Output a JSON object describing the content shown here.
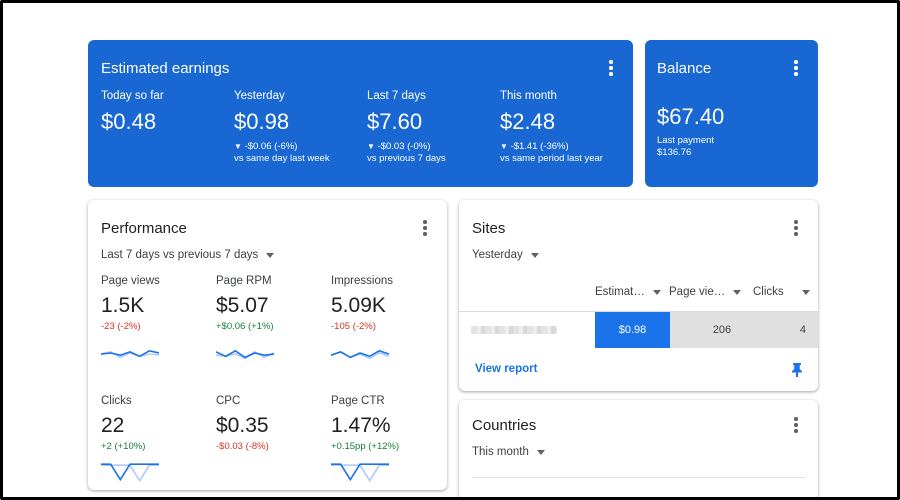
{
  "colors": {
    "accent_blue": "#1967d2",
    "negative": "#d93025",
    "positive": "#188038",
    "spark_primary": "#1a73e8",
    "spark_secondary": "#aecbfa"
  },
  "earnings": {
    "title": "Estimated earnings",
    "items": [
      {
        "label": "Today so far",
        "value": "$0.48",
        "delta": "",
        "compare": ""
      },
      {
        "label": "Yesterday",
        "value": "$0.98",
        "delta": "-$0.06 (-6%)",
        "compare": "vs same day last week"
      },
      {
        "label": "Last 7 days",
        "value": "$7.60",
        "delta": "-$0.03 (-0%)",
        "compare": "vs previous 7 days"
      },
      {
        "label": "This month",
        "value": "$2.48",
        "delta": "-$1.41 (-36%)",
        "compare": "vs same period last year"
      }
    ]
  },
  "balance": {
    "title": "Balance",
    "value": "$67.40",
    "last_payment_label": "Last payment",
    "last_payment_value": "$136.76"
  },
  "performance": {
    "title": "Performance",
    "range": "Last 7 days vs previous 7 days",
    "metrics": [
      {
        "label": "Page views",
        "value": "1.5K",
        "delta": "-23 (-2%)",
        "trend": "negative",
        "spark": [
          0.45,
          0.5,
          0.4,
          0.55,
          0.35,
          0.6,
          0.5
        ]
      },
      {
        "label": "Page RPM",
        "value": "$5.07",
        "delta": "+$0.06 (+1%)",
        "trend": "positive",
        "spark": [
          0.55,
          0.35,
          0.6,
          0.3,
          0.5,
          0.4,
          0.45
        ]
      },
      {
        "label": "Impressions",
        "value": "5.09K",
        "delta": "-105 (-2%)",
        "trend": "negative",
        "spark": [
          0.4,
          0.55,
          0.3,
          0.5,
          0.35,
          0.6,
          0.45
        ]
      },
      {
        "label": "Clicks",
        "value": "22",
        "delta": "+2 (+10%)",
        "trend": "positive",
        "spark": [
          0.9,
          0.9,
          0.2,
          0.9,
          0.9,
          0.9,
          0.9
        ]
      },
      {
        "label": "CPC",
        "value": "$0.35",
        "delta": "-$0.03 (-8%)",
        "trend": "negative",
        "spark": []
      },
      {
        "label": "Page CTR",
        "value": "1.47%",
        "delta": "+0.15pp (+12%)",
        "trend": "positive",
        "spark": [
          0.9,
          0.9,
          0.2,
          0.9,
          0.9,
          0.9,
          0.9
        ]
      }
    ]
  },
  "sites": {
    "title": "Sites",
    "range": "Yesterday",
    "columns": [
      "Estimat…",
      "Page vie…",
      "Clicks"
    ],
    "row": {
      "earnings": "$0.98",
      "page_views": "206",
      "clicks": "4"
    },
    "view_report": "View report"
  },
  "countries": {
    "title": "Countries",
    "range": "This month"
  }
}
